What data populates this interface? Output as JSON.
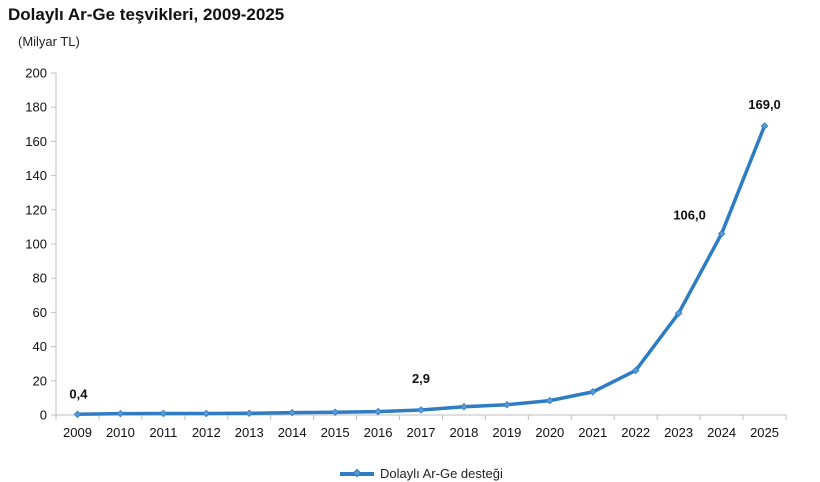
{
  "title": "Dolaylı Ar-Ge teşvikleri, 2009-2025",
  "unit_label": "(Milyar TL)",
  "colors": {
    "series": "#2E7CC4",
    "axis": "#BFBFBF"
  },
  "chart_data": {
    "type": "line",
    "title": "Dolaylı Ar-Ge teşvikleri, 2009-2025",
    "ylabel": "(Milyar TL)",
    "xlabel": "",
    "ylim": [
      0,
      200
    ],
    "yticks": [
      0,
      20,
      40,
      60,
      80,
      100,
      120,
      140,
      160,
      180,
      200
    ],
    "grid": false,
    "legend_position": "bottom",
    "x": [
      "2009",
      "2010",
      "2011",
      "2012",
      "2013",
      "2014",
      "2015",
      "2016",
      "2017",
      "2018",
      "2019",
      "2020",
      "2021",
      "2022",
      "2023",
      "2024",
      "2025"
    ],
    "series": [
      {
        "name": "Dolaylı Ar-Ge desteği",
        "values": [
          0.4,
          0.8,
          0.9,
          0.9,
          1.0,
          1.4,
          1.6,
          2.0,
          2.9,
          4.8,
          6.0,
          8.4,
          13.5,
          26.0,
          59.5,
          106.0,
          169.0
        ]
      }
    ],
    "data_labels": [
      {
        "index": 0,
        "text": "0,4"
      },
      {
        "index": 8,
        "text": "2,9"
      },
      {
        "index": 15,
        "text": "106,0"
      },
      {
        "index": 16,
        "text": "169,0"
      }
    ]
  }
}
